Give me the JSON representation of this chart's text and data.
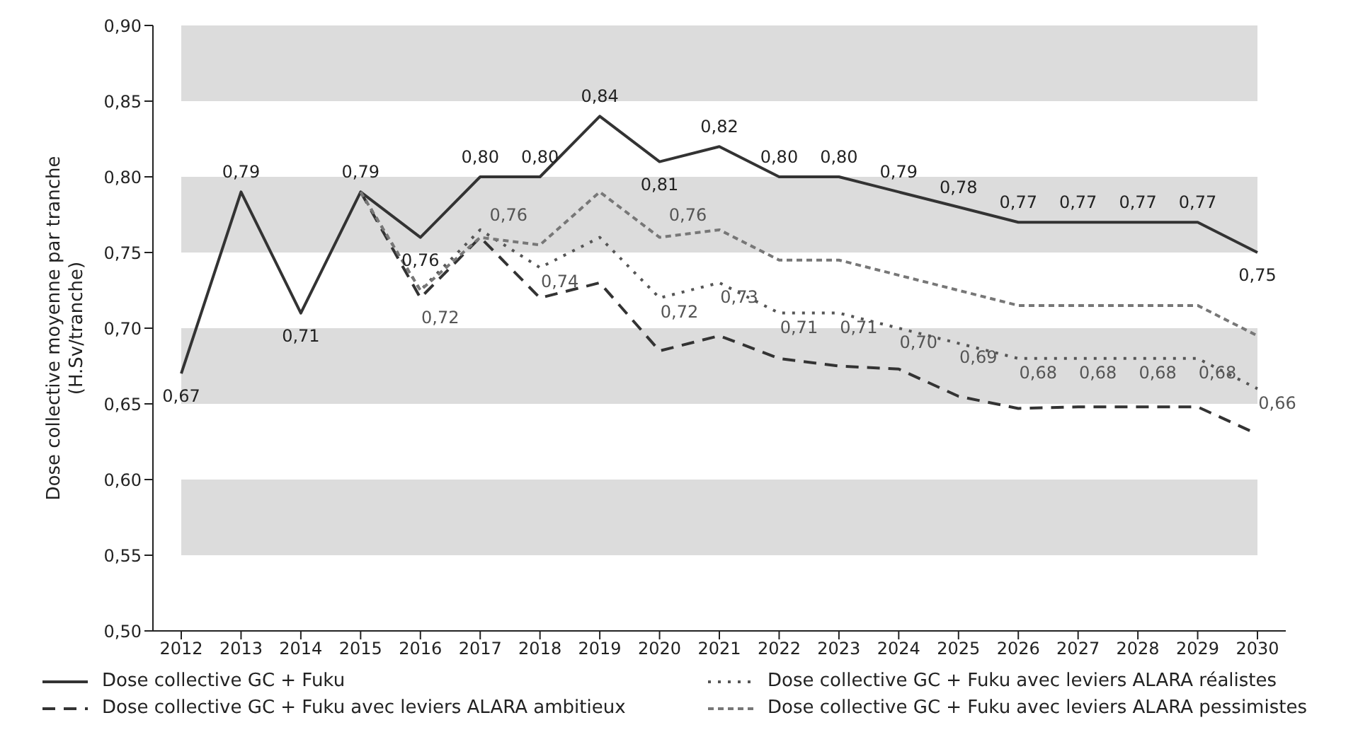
{
  "chart_data": {
    "type": "line",
    "ylabel": "Dose collective moyenne par tranche\n(H.Sv/tranche)",
    "categories": [
      "2012",
      "2013",
      "2014",
      "2015",
      "2016",
      "2017",
      "2018",
      "2019",
      "2020",
      "2021",
      "2022",
      "2023",
      "2024",
      "2025",
      "2026",
      "2027",
      "2028",
      "2029",
      "2030"
    ],
    "ylim": [
      0.5,
      0.9
    ],
    "yticks": [
      {
        "value": 0.5,
        "label": "0,50"
      },
      {
        "value": 0.55,
        "label": "0,55"
      },
      {
        "value": 0.6,
        "label": "0,60"
      },
      {
        "value": 0.65,
        "label": "0,65"
      },
      {
        "value": 0.7,
        "label": "0,70"
      },
      {
        "value": 0.75,
        "label": "0,75"
      },
      {
        "value": 0.8,
        "label": "0,80"
      },
      {
        "value": 0.85,
        "label": "0,85"
      },
      {
        "value": 0.9,
        "label": "0,90"
      }
    ],
    "bands": [
      {
        "axis": "y",
        "from": 0.85,
        "to": 0.9,
        "color": "#dcdcdc"
      },
      {
        "axis": "y",
        "from": 0.75,
        "to": 0.8,
        "color": "#dcdcdc"
      },
      {
        "axis": "y",
        "from": 0.65,
        "to": 0.7,
        "color": "#dcdcdc"
      },
      {
        "axis": "y",
        "from": 0.55,
        "to": 0.6,
        "color": "#dcdcdc"
      }
    ],
    "legend": "bottom",
    "marker": "none",
    "series": [
      {
        "name": "Dose collective GC + Fuku",
        "color": "#333333",
        "line_style": "solid",
        "values": [
          0.67,
          0.79,
          0.71,
          0.79,
          0.76,
          0.8,
          0.8,
          0.84,
          0.81,
          0.82,
          0.8,
          0.8,
          0.79,
          0.78,
          0.77,
          0.77,
          0.77,
          0.77,
          0.75
        ],
        "value_labels": [
          "0,67",
          "0,79",
          "0,71",
          "0,79",
          "0,76",
          "0,80",
          "0,80",
          "0,84",
          "0,81",
          "0,82",
          "0,80",
          "0,80",
          "0,79",
          "0,78",
          "0,77",
          "0,77",
          "0,77",
          "0,77",
          "0,75"
        ]
      },
      {
        "name": "Dose collective GC + Fuku avec leviers ALARA ambitieux",
        "color": "#333333",
        "line_style": "dashed",
        "values": [
          null,
          null,
          null,
          0.79,
          0.72,
          0.76,
          0.72,
          0.73,
          0.685,
          0.695,
          0.68,
          0.675,
          0.673,
          0.655,
          0.647,
          0.648,
          0.648,
          0.648,
          0.63
        ],
        "value_labels": [
          null,
          null,
          null,
          null,
          "0,72",
          null,
          null,
          null,
          null,
          null,
          null,
          null,
          null,
          null,
          null,
          null,
          null,
          null,
          null
        ]
      },
      {
        "name": "Dose collective GC + Fuku avec leviers ALARA réalistes",
        "color": "#555555",
        "line_style": "dotted",
        "values": [
          null,
          null,
          null,
          0.79,
          0.725,
          0.765,
          0.74,
          0.76,
          0.72,
          0.73,
          0.71,
          0.71,
          0.7,
          0.69,
          0.68,
          0.68,
          0.68,
          0.68,
          0.66
        ],
        "value_labels": [
          null,
          null,
          null,
          null,
          null,
          null,
          "0,74",
          null,
          "0,72",
          "0,73",
          "0,71",
          "0,71",
          "0,70",
          "0,69",
          "0,68",
          "0,68",
          "0,68",
          "0,68",
          "0,66"
        ]
      },
      {
        "name": "Dose collective GC + Fuku avec leviers ALARA pessimistes",
        "color": "#777777",
        "line_style": "dashed",
        "values": [
          null,
          null,
          null,
          0.79,
          0.725,
          0.76,
          0.755,
          0.79,
          0.76,
          0.765,
          0.745,
          0.745,
          0.735,
          0.725,
          0.715,
          0.715,
          0.715,
          0.715,
          0.695
        ],
        "value_labels": [
          null,
          null,
          null,
          null,
          null,
          "0,76",
          null,
          null,
          "0,76",
          null,
          null,
          null,
          null,
          null,
          null,
          null,
          null,
          null,
          null
        ]
      }
    ]
  }
}
